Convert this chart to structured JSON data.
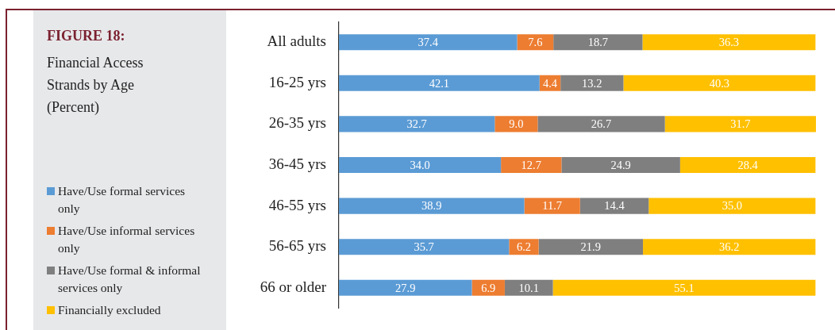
{
  "chart_data": {
    "type": "bar",
    "orientation": "horizontal",
    "stacked": true,
    "title": "FIGURE 18:",
    "subtitle": "Financial Access Strands by Age (Percent)",
    "categories": [
      "All adults",
      "16-25 yrs",
      "26-35 yrs",
      "36-45 yrs",
      "46-55 yrs",
      "56-65 yrs",
      "66 or older"
    ],
    "series": [
      {
        "name": "Have/Use formal services only",
        "color": "#5b9bd5",
        "values": [
          37.4,
          42.1,
          32.7,
          34.0,
          38.9,
          35.7,
          27.9
        ],
        "value_labels": [
          "37.4",
          "42.1",
          "32.7",
          "34.0",
          "38.9",
          "35.7",
          "27.9"
        ]
      },
      {
        "name": "Have/Use informal services only",
        "color": "#ed7d31",
        "values": [
          7.6,
          4.4,
          9.0,
          12.7,
          11.7,
          6.2,
          6.9
        ],
        "value_labels": [
          "7.6",
          "4.4",
          "9.0",
          "12.7",
          "11.7",
          "6.2",
          "6.9"
        ]
      },
      {
        "name": "Have/Use formal & informal services only",
        "color": "#7f7f7f",
        "values": [
          18.7,
          13.2,
          26.7,
          24.9,
          14.4,
          21.9,
          10.1
        ],
        "value_labels": [
          "18.7",
          "13.2",
          "26.7",
          "24.9",
          "14.4",
          "21.9",
          "10.1"
        ]
      },
      {
        "name": "Financially excluded",
        "color": "#ffc000",
        "values": [
          36.3,
          40.3,
          31.7,
          28.4,
          35.0,
          36.2,
          55.1
        ],
        "value_labels": [
          "36.3",
          "40.3",
          "31.7",
          "28.4",
          "35.0",
          "36.2",
          "55.1"
        ]
      }
    ],
    "legend": "left",
    "grid": false,
    "tick_labels": "y"
  }
}
